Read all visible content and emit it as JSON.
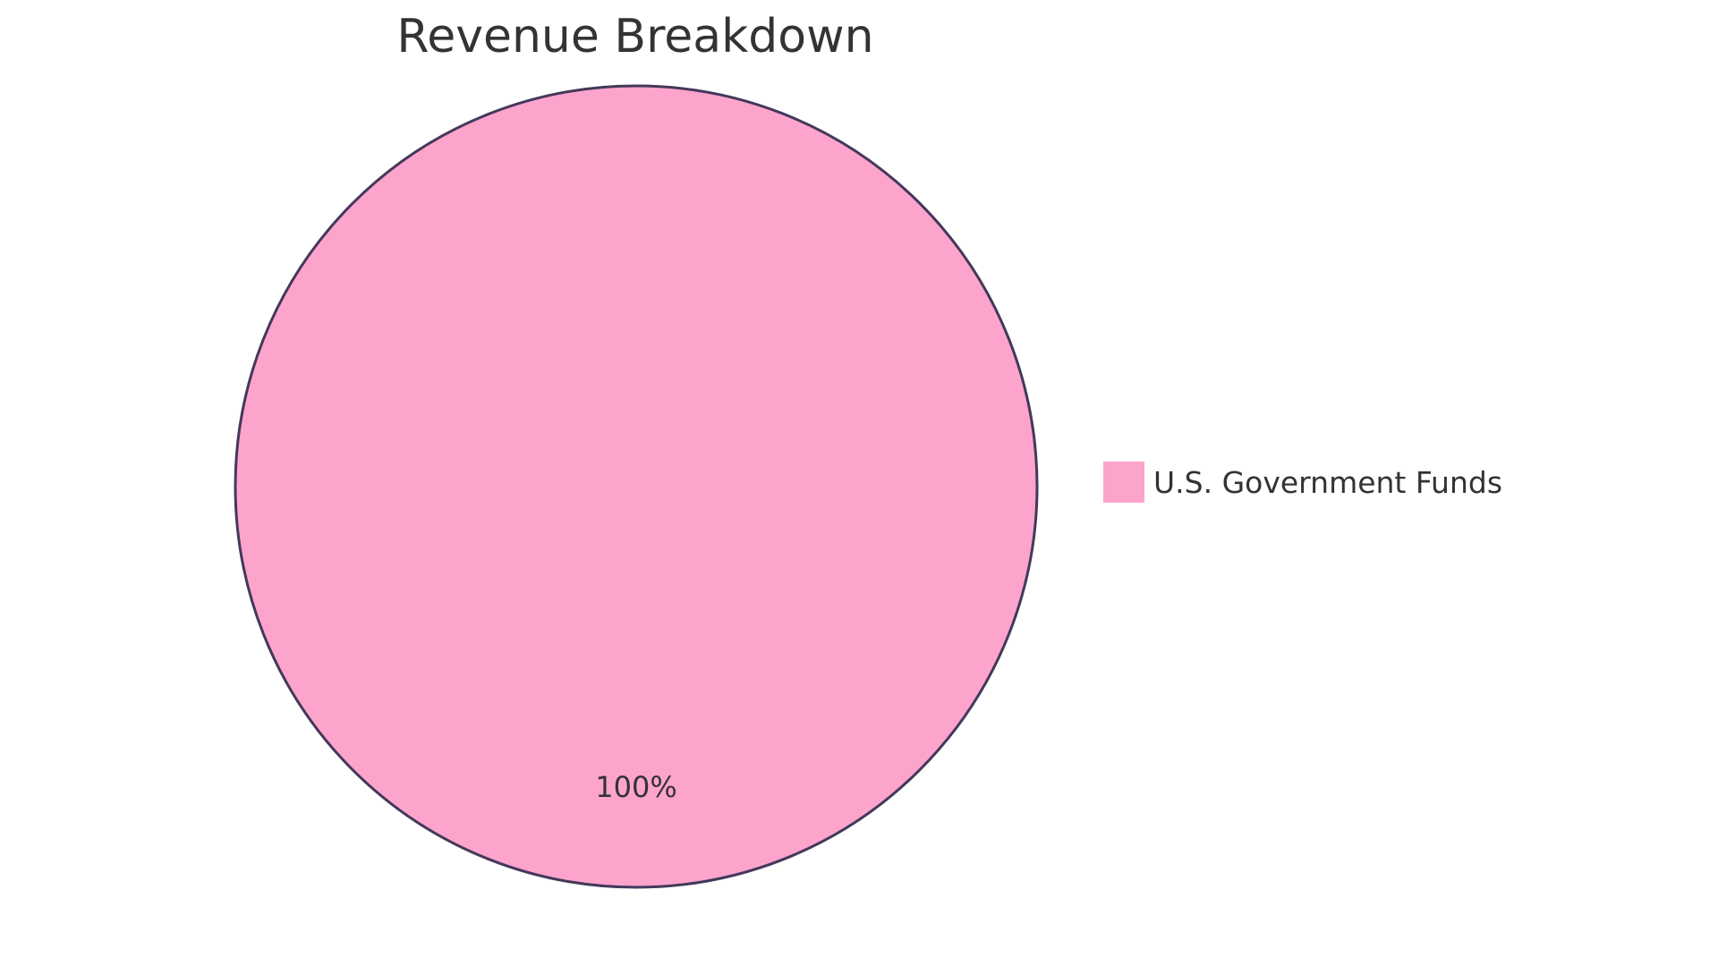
{
  "chart_data": {
    "type": "pie",
    "title": "Revenue Breakdown",
    "slices": [
      {
        "label": "U.S. Government Funds",
        "value": 100,
        "display": "100%",
        "color": "#FDA4CD"
      }
    ],
    "stroke_color": "#44385A",
    "legend_placement": "right"
  }
}
